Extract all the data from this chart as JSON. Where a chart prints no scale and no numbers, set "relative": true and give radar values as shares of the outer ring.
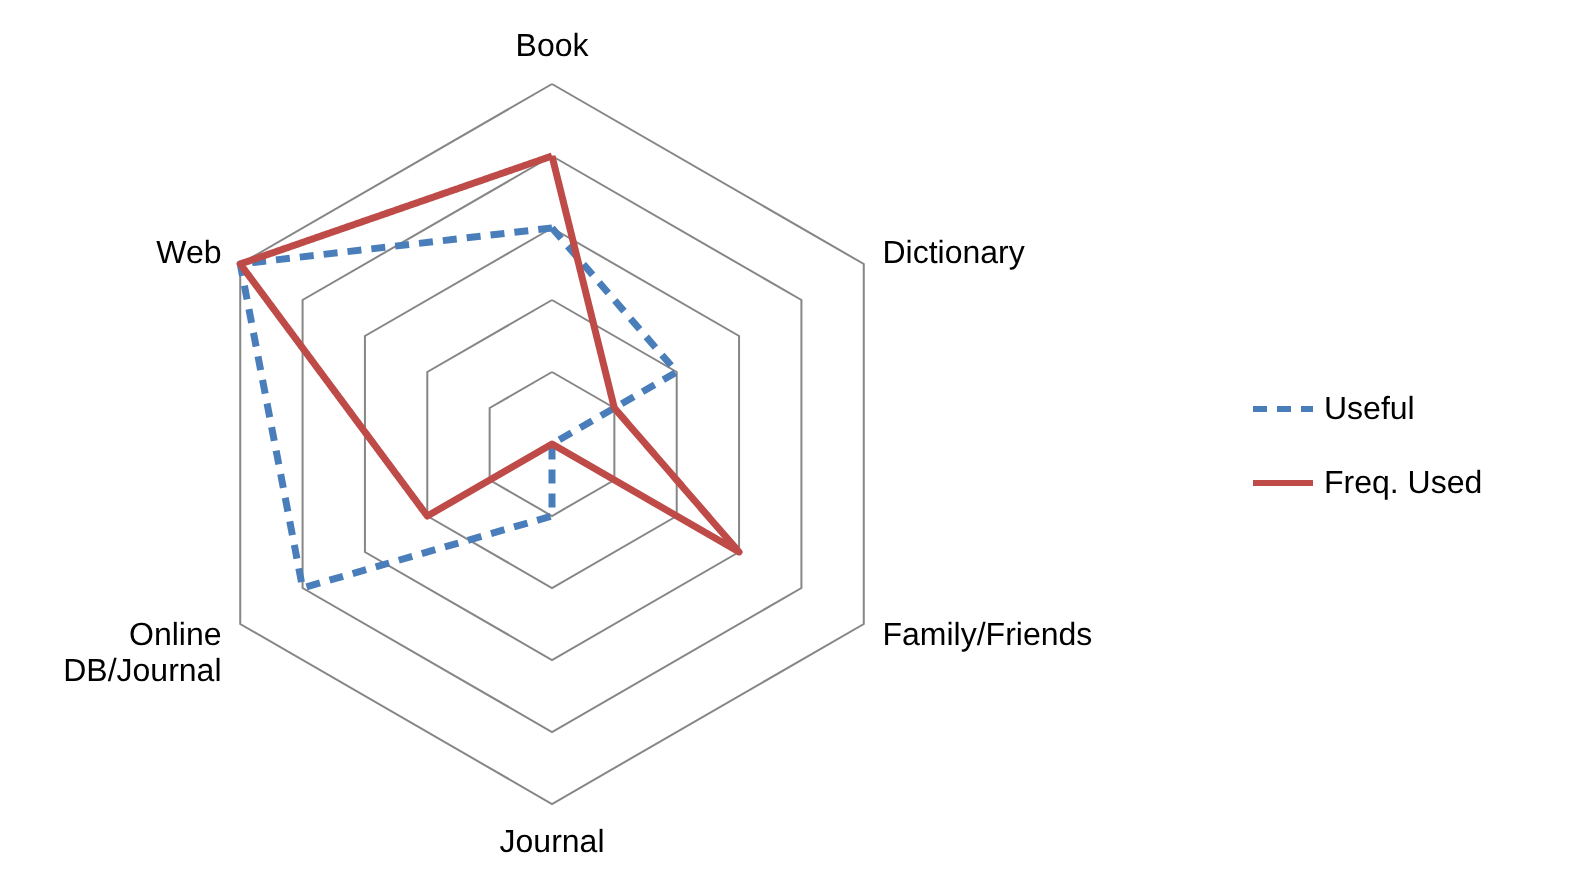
{
  "chart_data": {
    "type": "radar",
    "relative": true,
    "grid": true,
    "legend": "right",
    "categories": [
      "Book",
      "Dictionary",
      "Family/Friends",
      "Journal",
      "Online\nDB/Journal",
      "Web"
    ],
    "series": [
      {
        "name": "Useful",
        "color": "#4a7ebb",
        "line_style": "dashed",
        "values": [
          0.6,
          0.4,
          0,
          0.2,
          0.8,
          1
        ]
      },
      {
        "name": "Freq. Used",
        "color": "#be4b48",
        "line_style": "solid",
        "values": [
          0.8,
          0.2,
          0.6,
          0,
          0.4,
          1
        ]
      }
    ]
  }
}
